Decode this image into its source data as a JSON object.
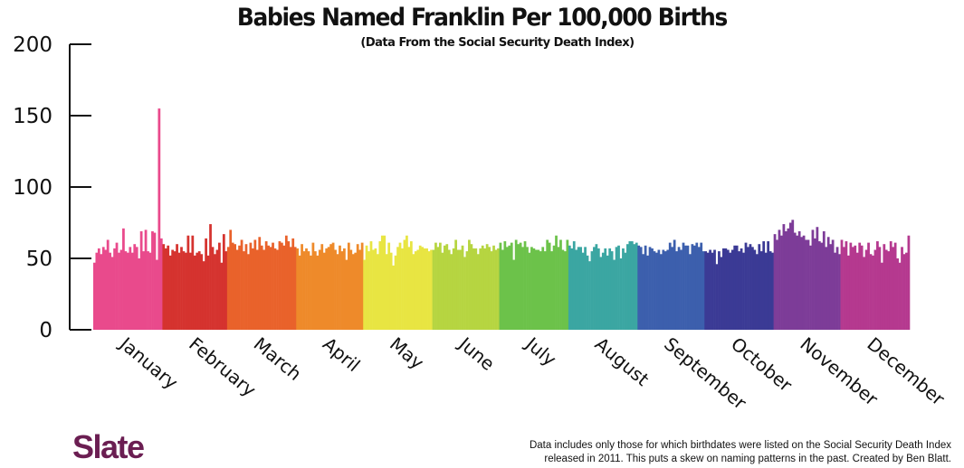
{
  "chart_data": {
    "type": "bar",
    "title": "Babies Named Franklin Per 100,000 Births",
    "subtitle": "(Data From the Social Security Death Index)",
    "xlabel": "",
    "ylabel": "",
    "ylim": [
      0,
      200
    ],
    "yticks": [
      0,
      50,
      100,
      150,
      200
    ],
    "grid": false,
    "legend": "none",
    "months": [
      {
        "name": "January",
        "color": "#e94a8c",
        "values": [
          47,
          54,
          57,
          53,
          58,
          56,
          63,
          54,
          51,
          57,
          61,
          54,
          56,
          71,
          55,
          54,
          58,
          54,
          60,
          58,
          50,
          69,
          55,
          70,
          55,
          54,
          69,
          68,
          49,
          155,
          64
        ]
      },
      {
        "name": "February",
        "color": "#d5332f",
        "values": [
          60,
          57,
          59,
          52,
          56,
          55,
          60,
          54,
          58,
          55,
          54,
          66,
          54,
          66,
          52,
          54,
          55,
          53,
          48,
          64,
          52,
          74,
          58,
          53,
          56,
          61,
          47,
          67,
          55
        ]
      },
      {
        "name": "March",
        "color": "#e9622b",
        "values": [
          58,
          70,
          61,
          60,
          56,
          59,
          63,
          55,
          60,
          53,
          61,
          57,
          63,
          56,
          65,
          59,
          56,
          62,
          59,
          58,
          61,
          57,
          56,
          62,
          61,
          59,
          66,
          62,
          58,
          64,
          58
        ]
      },
      {
        "name": "April",
        "color": "#ee8a2a",
        "values": [
          57,
          52,
          60,
          55,
          57,
          55,
          52,
          61,
          55,
          52,
          56,
          60,
          54,
          57,
          58,
          60,
          61,
          56,
          53,
          59,
          55,
          57,
          49,
          61,
          56,
          53,
          54,
          60,
          56,
          61
        ]
      },
      {
        "name": "May",
        "color": "#e8e542",
        "values": [
          49,
          59,
          55,
          62,
          56,
          57,
          53,
          62,
          66,
          66,
          53,
          61,
          54,
          45,
          52,
          58,
          61,
          57,
          63,
          66,
          58,
          62,
          53,
          55,
          56,
          59,
          58,
          57,
          57,
          55,
          56
        ]
      },
      {
        "name": "June",
        "color": "#b6d541",
        "values": [
          56,
          61,
          58,
          61,
          54,
          59,
          60,
          56,
          53,
          57,
          63,
          56,
          56,
          59,
          51,
          55,
          63,
          60,
          57,
          57,
          53,
          57,
          59,
          57,
          60,
          58,
          55,
          59,
          56,
          57
        ]
      },
      {
        "name": "July",
        "color": "#6cc24a",
        "values": [
          61,
          56,
          62,
          58,
          59,
          61,
          49,
          63,
          60,
          61,
          58,
          62,
          58,
          54,
          58,
          57,
          56,
          56,
          55,
          58,
          55,
          63,
          61,
          55,
          59,
          66,
          58,
          63,
          56,
          55,
          63
        ]
      },
      {
        "name": "August",
        "color": "#3ba6a2",
        "values": [
          59,
          57,
          62,
          56,
          58,
          58,
          54,
          58,
          52,
          48,
          55,
          58,
          60,
          57,
          51,
          54,
          57,
          52,
          57,
          55,
          49,
          58,
          59,
          50,
          57,
          54,
          60,
          62,
          62,
          60,
          61
        ]
      },
      {
        "name": "September",
        "color": "#3c5fad",
        "values": [
          59,
          58,
          53,
          59,
          52,
          58,
          57,
          55,
          54,
          56,
          53,
          56,
          55,
          56,
          61,
          58,
          63,
          55,
          58,
          56,
          61,
          59,
          59,
          53,
          60,
          59,
          61,
          58,
          61,
          55
        ]
      },
      {
        "name": "October",
        "color": "#3b3a95",
        "values": [
          55,
          54,
          56,
          54,
          56,
          46,
          55,
          51,
          57,
          57,
          56,
          54,
          56,
          59,
          59,
          55,
          57,
          54,
          61,
          58,
          60,
          58,
          56,
          53,
          60,
          55,
          62,
          54,
          62,
          55,
          54
        ]
      },
      {
        "name": "November",
        "color": "#7d3c98",
        "values": [
          67,
          63,
          70,
          66,
          74,
          69,
          71,
          75,
          77,
          68,
          66,
          69,
          65,
          66,
          63,
          63,
          59,
          70,
          64,
          72,
          62,
          61,
          69,
          58,
          65,
          60,
          63,
          54,
          58,
          53
        ]
      },
      {
        "name": "December",
        "color": "#b5398f",
        "values": [
          63,
          58,
          62,
          52,
          61,
          58,
          59,
          54,
          61,
          59,
          51,
          56,
          61,
          53,
          52,
          56,
          62,
          58,
          47,
          60,
          56,
          55,
          62,
          58,
          61,
          50,
          47,
          58,
          53,
          54,
          66
        ]
      }
    ]
  },
  "branding": {
    "logo": "Slate",
    "footnote_line1": "Data includes only those for which birthdates were listed on the Social Security Death Index",
    "footnote_line2": "released in 2011. This puts a skew on naming patterns in the past. Created by Ben Blatt."
  }
}
